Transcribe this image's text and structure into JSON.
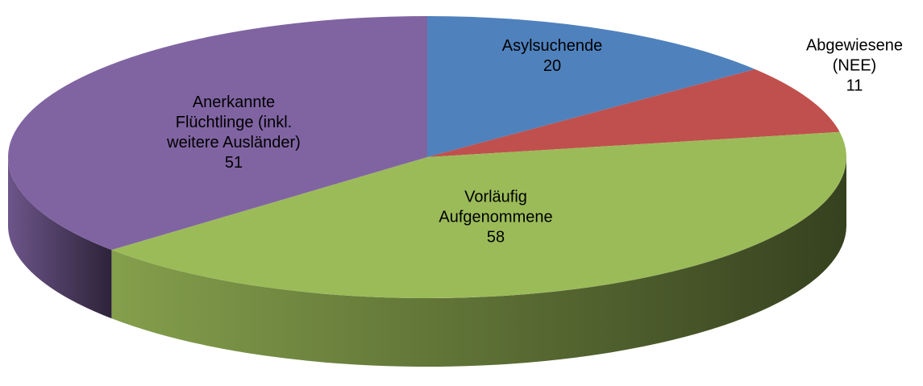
{
  "chart_data": {
    "type": "pie",
    "three_d": true,
    "categories": [
      "Asylsuchende",
      "Abgewiesene (NEE)",
      "Vorläufig Aufgenommene",
      "Anerkannte Flüchtlinge (inkl. weitere Ausländer)"
    ],
    "values": [
      20,
      11,
      58,
      51
    ],
    "colors": [
      "#4f81bd",
      "#c0504d",
      "#9bbb59",
      "#8064a2"
    ]
  }
}
